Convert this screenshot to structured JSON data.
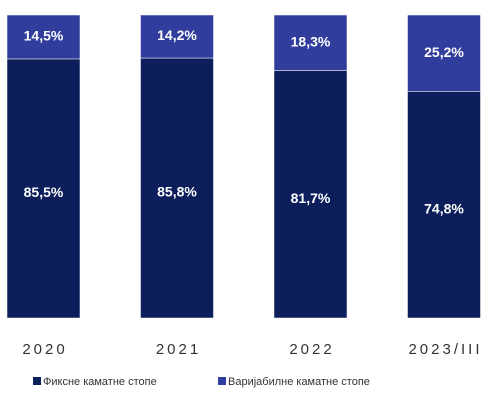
{
  "chart_data": {
    "type": "stacked_bar",
    "categories": [
      "2020",
      "2021",
      "2022",
      "2023/III"
    ],
    "series": [
      {
        "name": "Фиксне каматне стопе",
        "color": "#0c1e5b",
        "values": [
          85.5,
          85.8,
          81.7,
          74.8
        ],
        "value_labels": [
          "85,5%",
          "85,8%",
          "81,7%",
          "74,8%"
        ]
      },
      {
        "name": "Варијабилне каматне стопе",
        "color": "#313d9d",
        "values": [
          14.5,
          14.2,
          18.3,
          25.2
        ],
        "value_labels": [
          "14,5%",
          "14,2%",
          "18,3%",
          "25,2%"
        ]
      }
    ]
  }
}
